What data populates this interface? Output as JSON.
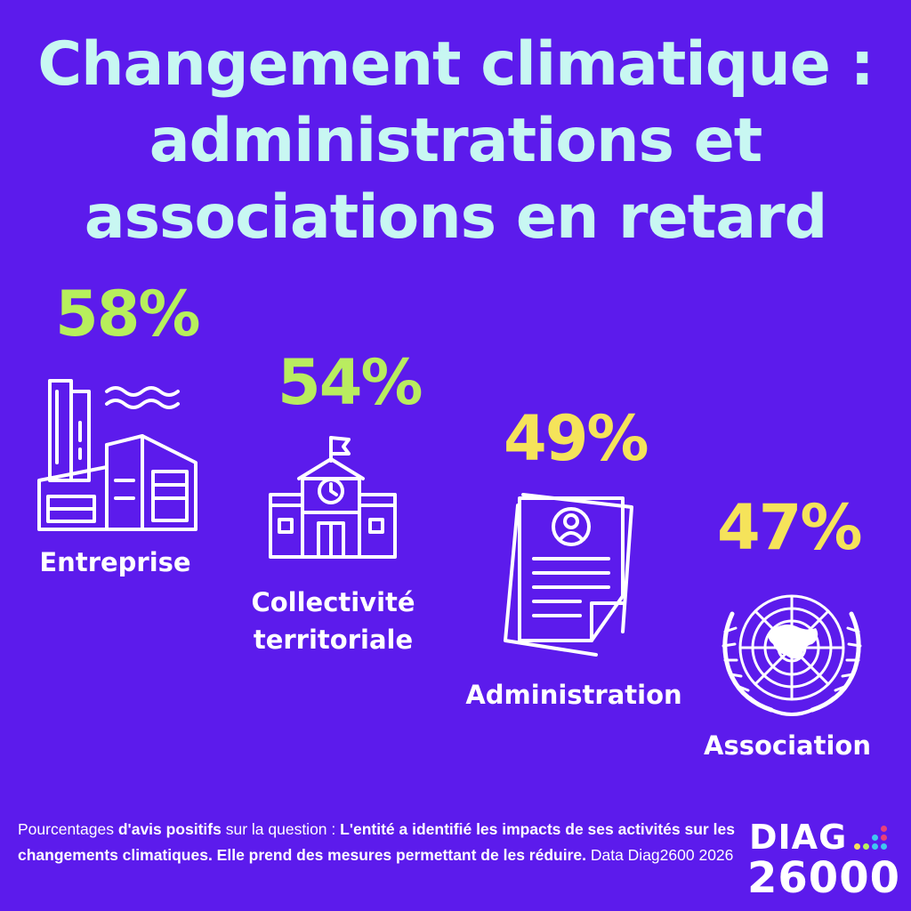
{
  "title": {
    "line1": "Changement climatique :",
    "line2": "administrations et",
    "line3": "associations en retard"
  },
  "chart_data": {
    "type": "bar",
    "title": "Changement climatique : administrations et associations en retard",
    "categories": [
      "Entreprise",
      "Collectivité territoriale",
      "Administration",
      "Association"
    ],
    "values": [
      58,
      54,
      49,
      47
    ],
    "value_labels": [
      "58%",
      "54%",
      "49%",
      "47%"
    ],
    "unit": "%",
    "value_colors": [
      "#b7ef5c",
      "#b9ec5f",
      "#f5e35a",
      "#f5e35a"
    ],
    "icons": [
      "factory-icon",
      "town-hall-icon",
      "document-icon",
      "un-emblem-icon"
    ]
  },
  "labels": {
    "entreprise": "Entreprise",
    "collectivite_line1": "Collectivité",
    "collectivite_line2": "territoriale",
    "administration": "Administration",
    "association": "Association"
  },
  "footer": {
    "part1": "Pourcentages ",
    "part2_bold": "d'avis positifs",
    "part3": " sur la question :  ",
    "part4_bold": "L'entité a identifié les impacts de ses activités sur les changements climatiques. Elle prend des mesures permettant de les réduire.",
    "part5": "  Data Diag2600 2026"
  },
  "logo": {
    "top": "DIAG",
    "bottom": "26000",
    "dot_colors": [
      "#f5e35a",
      "#b7ef5c",
      "#3fc7f0",
      "#e8407a"
    ]
  },
  "colors": {
    "background": "#5c1bec",
    "title": "#c8f7f2",
    "icon_stroke": "#ffffff"
  }
}
